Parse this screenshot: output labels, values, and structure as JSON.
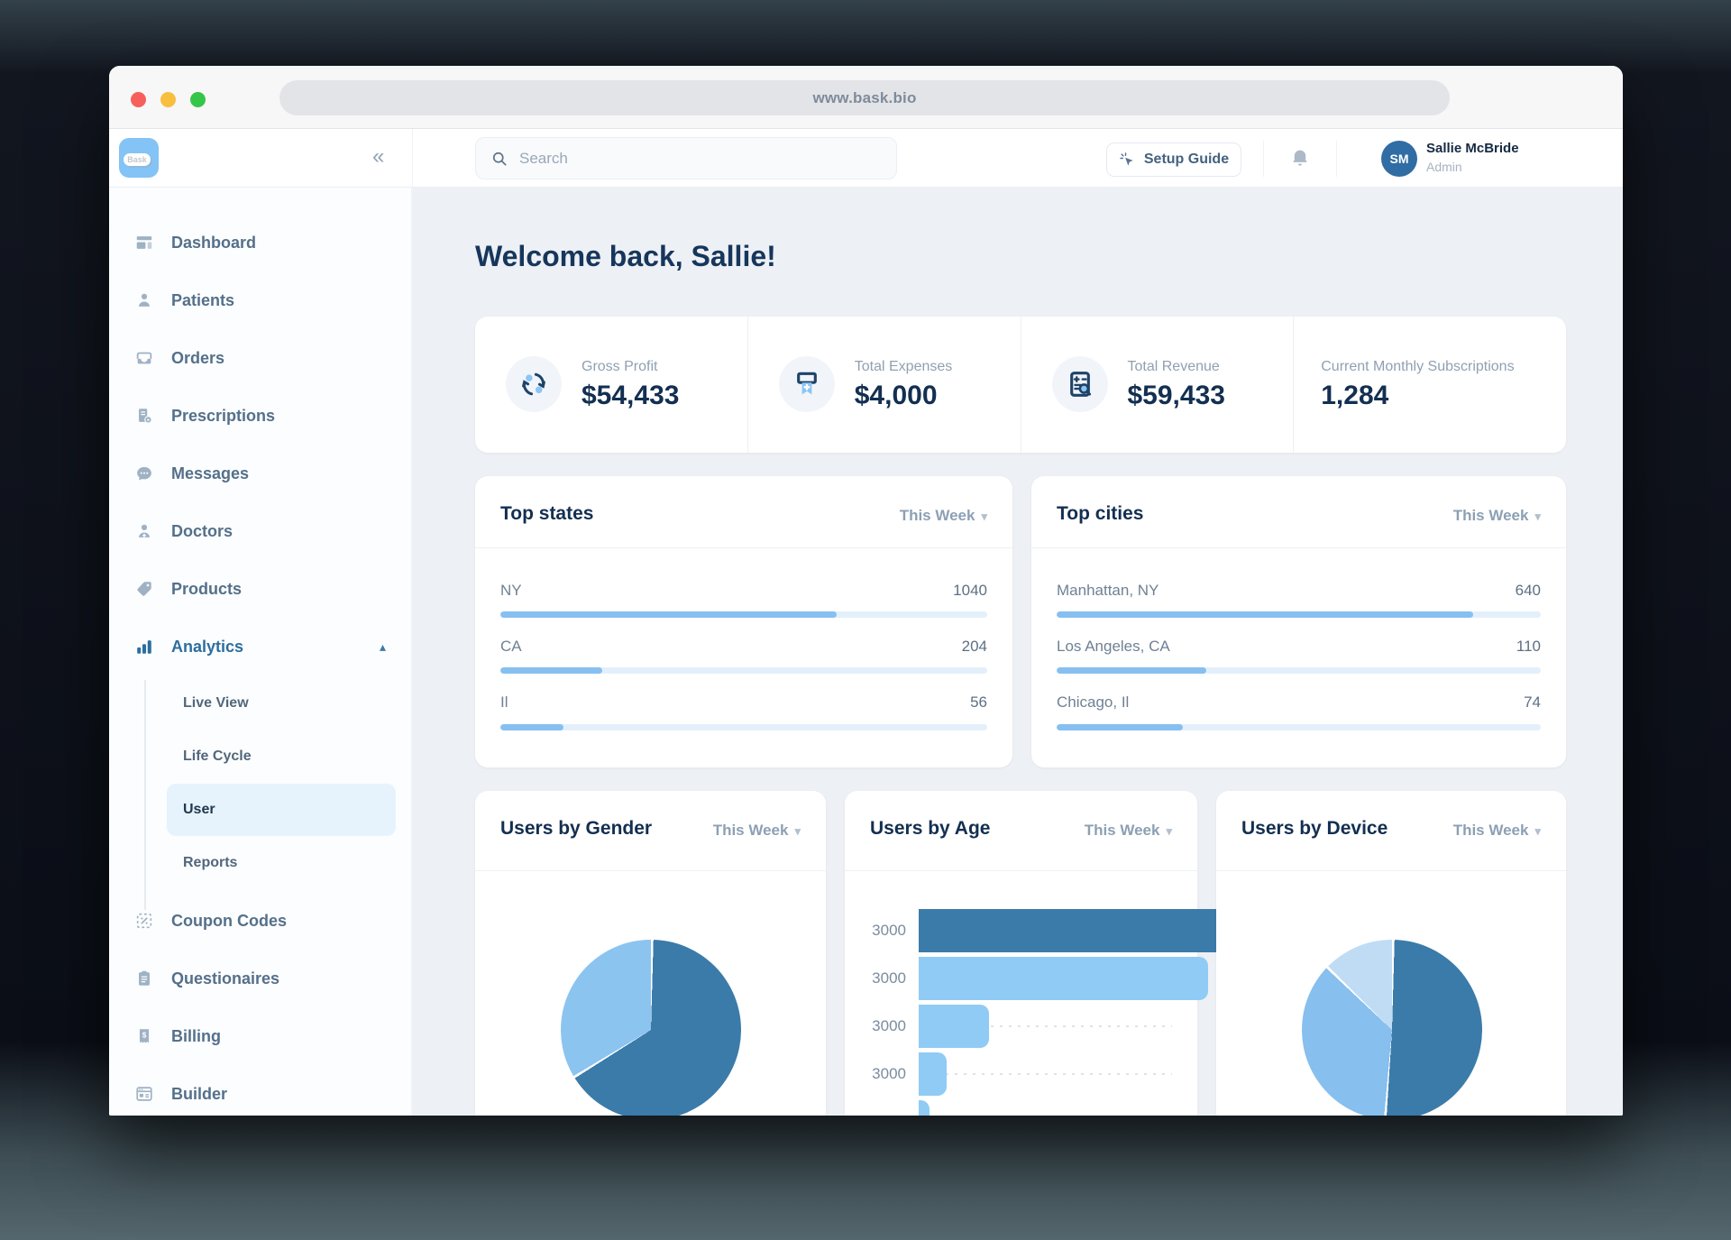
{
  "browser": {
    "url": "www.bask.bio"
  },
  "topbar": {
    "brand": "Bask",
    "collapse_icon": "«",
    "search": {
      "placeholder": "Search"
    },
    "setup_guide_label": "Setup Guide",
    "user": {
      "initials": "SM",
      "name": "Sallie McBride",
      "role": "Admin"
    }
  },
  "icons": {
    "caret_down": "▾",
    "caret_up": "▴"
  },
  "sidebar": {
    "active_item": "Analytics",
    "selected_subitem": "User",
    "items": [
      {
        "label": "Dashboard"
      },
      {
        "label": "Patients"
      },
      {
        "label": "Orders"
      },
      {
        "label": "Prescriptions"
      },
      {
        "label": "Messages"
      },
      {
        "label": "Doctors"
      },
      {
        "label": "Products"
      },
      {
        "label": "Analytics"
      },
      {
        "label": "Live View"
      },
      {
        "label": "Life Cycle"
      },
      {
        "label": "User"
      },
      {
        "label": "Reports"
      },
      {
        "label": "Coupon Codes"
      },
      {
        "label": "Questionaires"
      },
      {
        "label": "Billing"
      },
      {
        "label": "Builder"
      }
    ]
  },
  "main": {
    "welcome": "Welcome back, Sallie!",
    "stats": [
      {
        "label": "Gross Profit",
        "value": "$54,433",
        "icon": "cycle-arrows"
      },
      {
        "label": "Total Expenses",
        "value": "$4,000",
        "icon": "ribbon-ticket"
      },
      {
        "label": "Total Revenue",
        "value": "$59,433",
        "icon": "invoice-search"
      },
      {
        "label": "Current Monthly Subscriptions",
        "value": "1,284",
        "icon": "none"
      }
    ]
  },
  "colors": {
    "dark_blue": "#3B7BA9",
    "light_blue": "#8FCBF5",
    "pale_blue": "#C0DCF5",
    "progress_fill": "#87C0F0",
    "progress_track": "#E3F0FB",
    "accent_navy_text": "#132F51"
  },
  "chart_data": {
    "top_states": {
      "type": "bar",
      "title": "Top states",
      "period": "This Week",
      "rows": [
        {
          "label": "NY",
          "value": "1040",
          "pct": 69
        },
        {
          "label": "CA",
          "value": "204",
          "pct": 21
        },
        {
          "label": "Il",
          "value": "56",
          "pct": 13
        }
      ]
    },
    "top_cities": {
      "type": "bar",
      "title": "Top cities",
      "period": "This Week",
      "rows": [
        {
          "label": "Manhattan, NY",
          "value": "640",
          "pct": 86
        },
        {
          "label": "Los Angeles, CA",
          "value": "110",
          "pct": 31
        },
        {
          "label": "Chicago, Il",
          "value": "74",
          "pct": 26
        }
      ]
    },
    "users_by_gender": {
      "type": "pie",
      "title": "Users by Gender",
      "period": "This Week",
      "slices": [
        {
          "pct": 66,
          "color": "#3B7BA9"
        },
        {
          "pct": 34,
          "color": "#8CC4F0"
        }
      ]
    },
    "users_by_age": {
      "type": "bar",
      "title": "Users by Age",
      "period": "This Week",
      "rows": [
        {
          "label": "3000",
          "pct": 95,
          "color": "#3B7BA9"
        },
        {
          "label": "3000",
          "pct": 82,
          "color": "#8FCBF5"
        },
        {
          "label": "3000",
          "pct": 20,
          "color": "#8FCBF5"
        },
        {
          "label": "3000",
          "pct": 8,
          "color": "#8FCBF5"
        },
        {
          "label": "3000",
          "pct": 3,
          "color": "#8FCBF5"
        }
      ]
    },
    "users_by_device": {
      "type": "pie",
      "title": "Users by Device",
      "period": "This Week",
      "slices": [
        {
          "pct": 51,
          "color": "#3B7BA9"
        },
        {
          "pct": 36,
          "color": "#87BFEE"
        },
        {
          "pct": 13,
          "color": "#C0DCF5"
        }
      ]
    }
  }
}
